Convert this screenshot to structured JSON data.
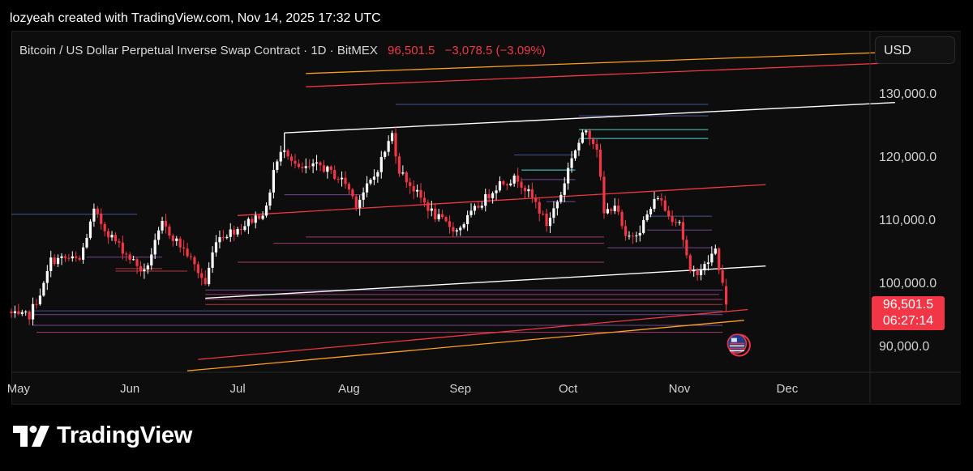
{
  "credit": "lozyeah created with TradingView.com, Nov 14, 2025 17:32 UTC",
  "header": {
    "symbol": "Bitcoin / US Dollar Perpetual Inverse Swap Contract · 1D · BitMEX",
    "last_price": "96,501.5",
    "change": "−3,078.5 (−3.09%)"
  },
  "currency": "USD",
  "price_tag": {
    "price": "96,501.5",
    "countdown": "06:27:14"
  },
  "brand": "TradingView",
  "colors": {
    "up": "#ffffff",
    "down": "#f23645",
    "background": "#0d0d0d",
    "trendline": "#ffffff",
    "red_line": "#f23645",
    "orange_line": "#ff9f1a"
  },
  "chart_data": {
    "type": "candlestick",
    "timeframe": "1D",
    "y_ticks": [
      90000,
      100000,
      110000,
      120000,
      130000
    ],
    "y_tick_labels": [
      "90,000.0",
      "100,000.0",
      "110,000.0",
      "120,000.0",
      "130,000.0"
    ],
    "ylim": [
      84000,
      138000
    ],
    "x_ticks": [
      "May",
      "Jun",
      "Jul",
      "Aug",
      "Sep",
      "Oct",
      "Nov",
      "Dec"
    ],
    "x_tick_dates": [
      "2025-05-01",
      "2025-06-01",
      "2025-07-01",
      "2025-08-01",
      "2025-09-01",
      "2025-10-01",
      "2025-11-01",
      "2025-12-01"
    ],
    "xlim": [
      "2025-04-29",
      "2025-12-31"
    ],
    "anchors": [
      [
        "2025-04-29",
        95000
      ],
      [
        "2025-05-01",
        94500
      ],
      [
        "2025-05-04",
        94800
      ],
      [
        "2025-05-08",
        99500
      ],
      [
        "2025-05-10",
        103500
      ],
      [
        "2025-05-14",
        103800
      ],
      [
        "2025-05-18",
        103500
      ],
      [
        "2025-05-22",
        111200
      ],
      [
        "2025-05-25",
        108500
      ],
      [
        "2025-05-31",
        104500
      ],
      [
        "2025-06-05",
        101500
      ],
      [
        "2025-06-10",
        109200
      ],
      [
        "2025-06-17",
        104500
      ],
      [
        "2025-06-22",
        99800
      ],
      [
        "2025-06-25",
        107000
      ],
      [
        "2025-07-02",
        108800
      ],
      [
        "2025-07-09",
        111500
      ],
      [
        "2025-07-11",
        117800
      ],
      [
        "2025-07-14",
        121500
      ],
      [
        "2025-07-18",
        117800
      ],
      [
        "2025-07-24",
        118500
      ],
      [
        "2025-07-31",
        115800
      ],
      [
        "2025-08-03",
        112500
      ],
      [
        "2025-08-08",
        116800
      ],
      [
        "2025-08-13",
        123500
      ],
      [
        "2025-08-15",
        117800
      ],
      [
        "2025-08-20",
        114000
      ],
      [
        "2025-08-25",
        110500
      ],
      [
        "2025-08-31",
        108200
      ],
      [
        "2025-09-05",
        111500
      ],
      [
        "2025-09-12",
        115800
      ],
      [
        "2025-09-17",
        116500
      ],
      [
        "2025-09-22",
        112500
      ],
      [
        "2025-09-25",
        109200
      ],
      [
        "2025-09-29",
        114000
      ],
      [
        "2025-10-02",
        120000
      ],
      [
        "2025-10-06",
        124200
      ],
      [
        "2025-10-09",
        121500
      ],
      [
        "2025-10-11",
        110800
      ],
      [
        "2025-10-14",
        112500
      ],
      [
        "2025-10-17",
        106800
      ],
      [
        "2025-10-21",
        108500
      ],
      [
        "2025-10-26",
        113800
      ],
      [
        "2025-10-29",
        110500
      ],
      [
        "2025-11-01",
        109800
      ],
      [
        "2025-11-04",
        101200
      ],
      [
        "2025-11-08",
        102500
      ],
      [
        "2025-11-11",
        105200
      ],
      [
        "2025-11-13",
        99600
      ],
      [
        "2025-11-14",
        96501.5
      ]
    ],
    "trendlines": [
      {
        "color": "white",
        "points": [
          [
            "2025-06-22",
            97500
          ],
          [
            "2025-11-25",
            102600
          ]
        ]
      },
      {
        "color": "white",
        "points": [
          [
            "2025-07-14",
            123700
          ],
          [
            "2025-12-31",
            128500
          ]
        ]
      },
      {
        "color": "white",
        "points": [
          [
            "2025-07-14",
            123700
          ],
          [
            "2025-07-14",
            121000
          ]
        ]
      },
      {
        "color": "red",
        "points": [
          [
            "2025-07-01",
            110600
          ],
          [
            "2025-11-25",
            115500
          ]
        ]
      },
      {
        "color": "red",
        "points": [
          [
            "2025-06-20",
            87800
          ],
          [
            "2025-11-20",
            95700
          ]
        ]
      },
      {
        "color": "red",
        "points": [
          [
            "2025-07-20",
            131000
          ],
          [
            "2025-12-31",
            134800
          ]
        ]
      },
      {
        "color": "orange",
        "points": [
          [
            "2025-06-17",
            86000
          ],
          [
            "2025-11-19",
            94000
          ]
        ]
      },
      {
        "color": "orange",
        "points": [
          [
            "2025-07-20",
            133100
          ],
          [
            "2025-12-31",
            136500
          ]
        ]
      }
    ],
    "horizontal_levels": [
      {
        "price": 128200,
        "from": "2025-08-14",
        "to": "2025-11-09",
        "color": "blue"
      },
      {
        "price": 126400,
        "from": "2025-10-04",
        "to": "2025-11-09",
        "color": "blue"
      },
      {
        "price": 124200,
        "from": "2025-10-04",
        "to": "2025-11-09",
        "color": "teal"
      },
      {
        "price": 122800,
        "from": "2025-10-04",
        "to": "2025-11-09",
        "color": "teal"
      },
      {
        "price": 120200,
        "from": "2025-09-16",
        "to": "2025-10-03",
        "color": "blue"
      },
      {
        "price": 117800,
        "from": "2025-09-18",
        "to": "2025-10-03",
        "color": "teal"
      },
      {
        "price": 116300,
        "from": "2025-09-18",
        "to": "2025-10-03",
        "color": "purple"
      },
      {
        "price": 113900,
        "from": "2025-07-14",
        "to": "2025-08-05",
        "color": "purple"
      },
      {
        "price": 112800,
        "from": "2025-09-25",
        "to": "2025-10-03",
        "color": "purple"
      },
      {
        "price": 110800,
        "from": "2025-04-29",
        "to": "2025-06-03",
        "color": "blue"
      },
      {
        "price": 110500,
        "from": "2025-10-23",
        "to": "2025-11-10",
        "color": "blue"
      },
      {
        "price": 108300,
        "from": "2025-10-23",
        "to": "2025-11-10",
        "color": "purple"
      },
      {
        "price": 107200,
        "from": "2025-07-20",
        "to": "2025-10-11",
        "color": "pink"
      },
      {
        "price": 106200,
        "from": "2025-07-11",
        "to": "2025-10-11",
        "color": "pink"
      },
      {
        "price": 105500,
        "from": "2025-10-12",
        "to": "2025-11-10",
        "color": "purple"
      },
      {
        "price": 104000,
        "from": "2025-05-20",
        "to": "2025-06-10",
        "color": "purple"
      },
      {
        "price": 103200,
        "from": "2025-07-01",
        "to": "2025-10-11",
        "color": "pink"
      },
      {
        "price": 102200,
        "from": "2025-05-28",
        "to": "2025-06-10",
        "color": "red"
      },
      {
        "price": 101800,
        "from": "2025-05-28",
        "to": "2025-06-17",
        "color": "red"
      },
      {
        "price": 98800,
        "from": "2025-06-22",
        "to": "2025-11-13",
        "color": "purple"
      },
      {
        "price": 98100,
        "from": "2025-06-22",
        "to": "2025-11-12",
        "color": "pink"
      },
      {
        "price": 97300,
        "from": "2025-06-22",
        "to": "2025-11-13",
        "color": "pink"
      },
      {
        "price": 96500,
        "from": "2025-06-22",
        "to": "2025-11-13",
        "color": "red"
      },
      {
        "price": 95500,
        "from": "2025-05-05",
        "to": "2025-11-13",
        "color": "blue"
      },
      {
        "price": 94900,
        "from": "2025-05-05",
        "to": "2025-11-13",
        "color": "purple"
      },
      {
        "price": 93200,
        "from": "2025-05-05",
        "to": "2025-11-13",
        "color": "purple"
      },
      {
        "price": 92100,
        "from": "2025-05-06",
        "to": "2025-11-13",
        "color": "pink"
      }
    ],
    "event_marker": {
      "date": "2025-11-17",
      "price": 90300,
      "icon": "us-flag-icon"
    }
  }
}
